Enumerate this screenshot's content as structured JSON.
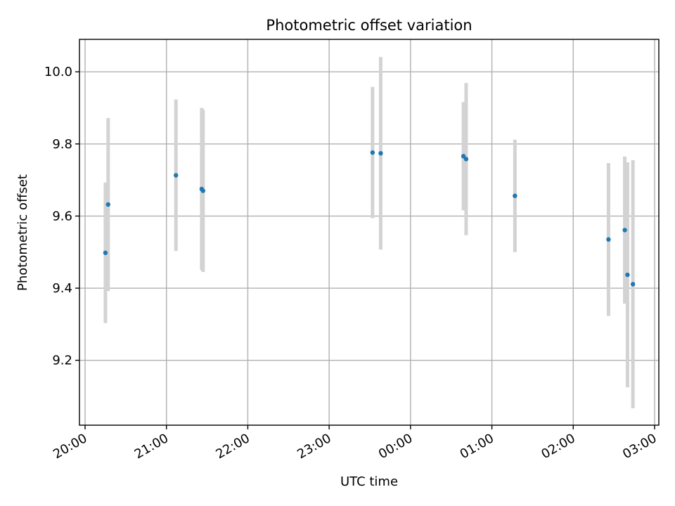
{
  "chart_data": {
    "type": "scatter",
    "title": "Photometric offset variation",
    "xlabel": "UTC time",
    "ylabel": "Photometric offset",
    "x_axis": {
      "kind": "time",
      "start": "20:00",
      "end": "03:00",
      "ticks": [
        "20:00",
        "21:00",
        "22:00",
        "23:00",
        "00:00",
        "01:00",
        "02:00",
        "03:00"
      ]
    },
    "y_axis": {
      "ylim": [
        9.02,
        10.09
      ],
      "ticks": [
        9.2,
        9.4,
        9.6,
        9.8,
        10.0
      ],
      "tick_labels": [
        "9.2",
        "9.4",
        "9.6",
        "9.8",
        "10.0"
      ]
    },
    "grid": true,
    "colors": {
      "point": "#1f77b4",
      "errorbar": "#d3d3d3"
    },
    "series": [
      {
        "points": [
          {
            "x": "20:15",
            "y": 9.498,
            "yerr": 0.195
          },
          {
            "x": "20:17",
            "y": 9.632,
            "yerr": 0.24
          },
          {
            "x": "21:07",
            "y": 9.713,
            "yerr": 0.21
          },
          {
            "x": "21:26",
            "y": 9.675,
            "yerr": 0.225
          },
          {
            "x": "21:27",
            "y": 9.67,
            "yerr": 0.225
          },
          {
            "x": "23:32",
            "y": 9.776,
            "yerr": 0.182
          },
          {
            "x": "23:38",
            "y": 9.774,
            "yerr": 0.267
          },
          {
            "x": "00:39",
            "y": 9.766,
            "yerr": 0.15
          },
          {
            "x": "00:41",
            "y": 9.758,
            "yerr": 0.211
          },
          {
            "x": "01:17",
            "y": 9.656,
            "yerr": 0.156
          },
          {
            "x": "02:26",
            "y": 9.535,
            "yerr": 0.212
          },
          {
            "x": "02:38",
            "y": 9.561,
            "yerr": 0.204
          },
          {
            "x": "02:40",
            "y": 9.437,
            "yerr": 0.312
          },
          {
            "x": "02:44",
            "y": 9.411,
            "yerr": 0.344
          }
        ]
      }
    ]
  }
}
